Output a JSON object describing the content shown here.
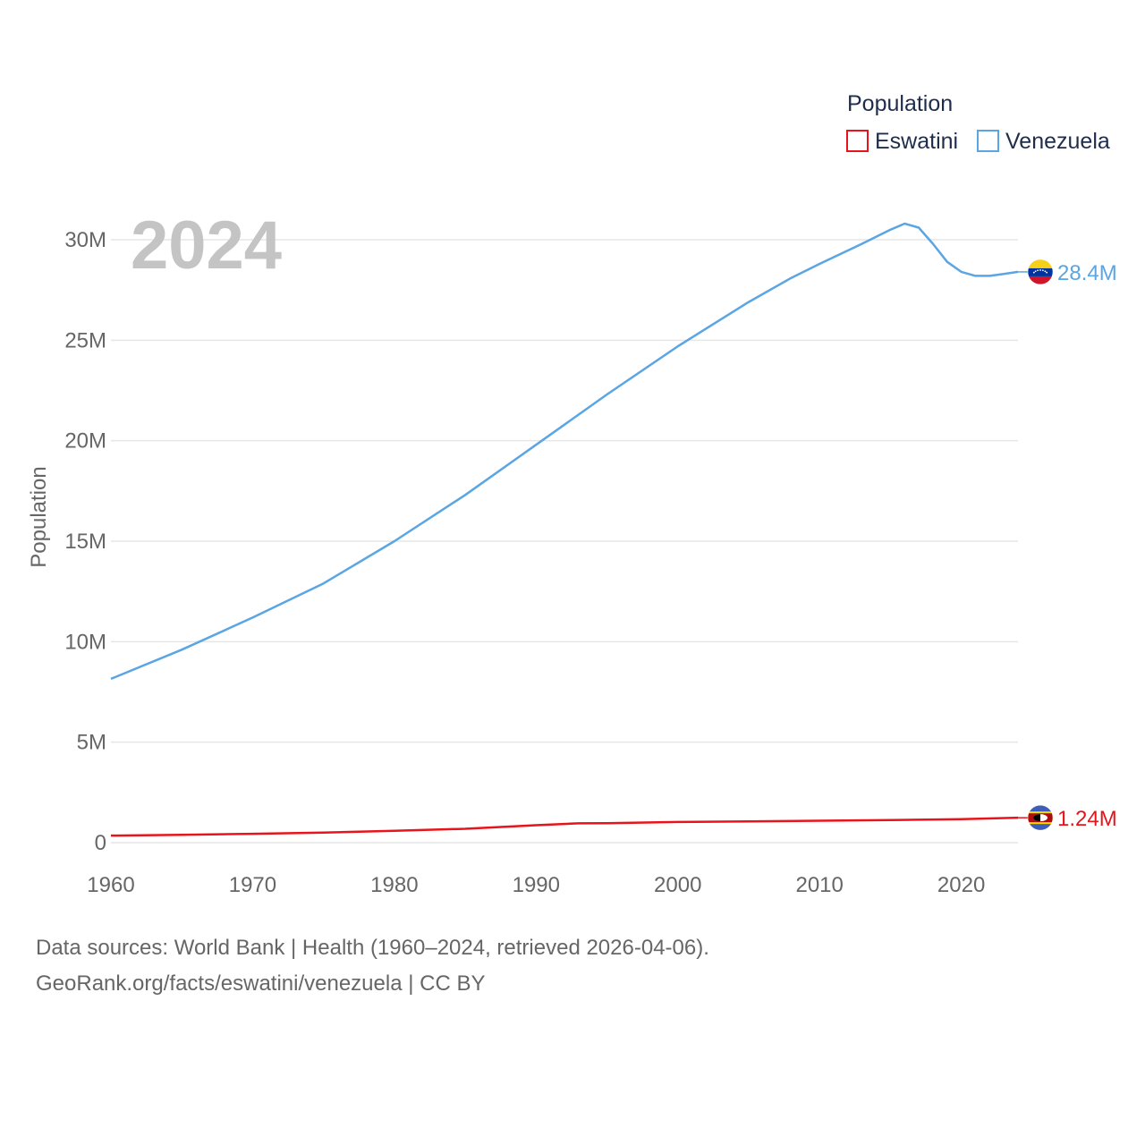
{
  "chart_data": {
    "type": "line",
    "title": "",
    "year_label": "2024",
    "xlabel": "",
    "ylabel": "Population",
    "xlim": [
      1960,
      2024
    ],
    "ylim": [
      0,
      30000000
    ],
    "x_ticks": [
      1960,
      1970,
      1980,
      1990,
      2000,
      2010,
      2020
    ],
    "x_tick_labels": [
      "1960",
      "1970",
      "1980",
      "1990",
      "2000",
      "2010",
      "2020"
    ],
    "y_ticks": [
      0,
      5000000,
      10000000,
      15000000,
      20000000,
      25000000,
      30000000
    ],
    "y_tick_labels": [
      "0",
      "5M",
      "10M",
      "15M",
      "20M",
      "25M",
      "30M"
    ],
    "grid": true,
    "legend": {
      "title": "Population",
      "position": "top-right"
    },
    "series": [
      {
        "name": "Eswatini",
        "color": "#e8141b",
        "end_label": "1.24M",
        "flag_icon": "eswatini-flag-icon",
        "points": [
          [
            1960,
            350000
          ],
          [
            1965,
            390000
          ],
          [
            1970,
            440000
          ],
          [
            1975,
            500000
          ],
          [
            1980,
            590000
          ],
          [
            1985,
            690000
          ],
          [
            1990,
            870000
          ],
          [
            1993,
            960000
          ],
          [
            1995,
            970000
          ],
          [
            2000,
            1030000
          ],
          [
            2005,
            1060000
          ],
          [
            2010,
            1090000
          ],
          [
            2015,
            1120000
          ],
          [
            2020,
            1170000
          ],
          [
            2024,
            1240000
          ]
        ]
      },
      {
        "name": "Venezuela",
        "color": "#5aa5e3",
        "end_label": "28.4M",
        "flag_icon": "venezuela-flag-icon",
        "points": [
          [
            1960,
            8150000
          ],
          [
            1965,
            9600000
          ],
          [
            1970,
            11200000
          ],
          [
            1975,
            12900000
          ],
          [
            1980,
            15000000
          ],
          [
            1985,
            17300000
          ],
          [
            1990,
            19800000
          ],
          [
            1995,
            22300000
          ],
          [
            2000,
            24700000
          ],
          [
            2005,
            26900000
          ],
          [
            2008,
            28100000
          ],
          [
            2010,
            28800000
          ],
          [
            2013,
            29800000
          ],
          [
            2015,
            30500000
          ],
          [
            2016,
            30800000
          ],
          [
            2017,
            30600000
          ],
          [
            2018,
            29800000
          ],
          [
            2019,
            28900000
          ],
          [
            2020,
            28400000
          ],
          [
            2021,
            28200000
          ],
          [
            2022,
            28200000
          ],
          [
            2023,
            28300000
          ],
          [
            2024,
            28400000
          ]
        ]
      }
    ]
  },
  "source": {
    "line1": "Data sources: World Bank | Health (1960–2024, retrieved 2026-04-06).",
    "line2": "GeoRank.org/facts/eswatini/venezuela | CC BY"
  }
}
